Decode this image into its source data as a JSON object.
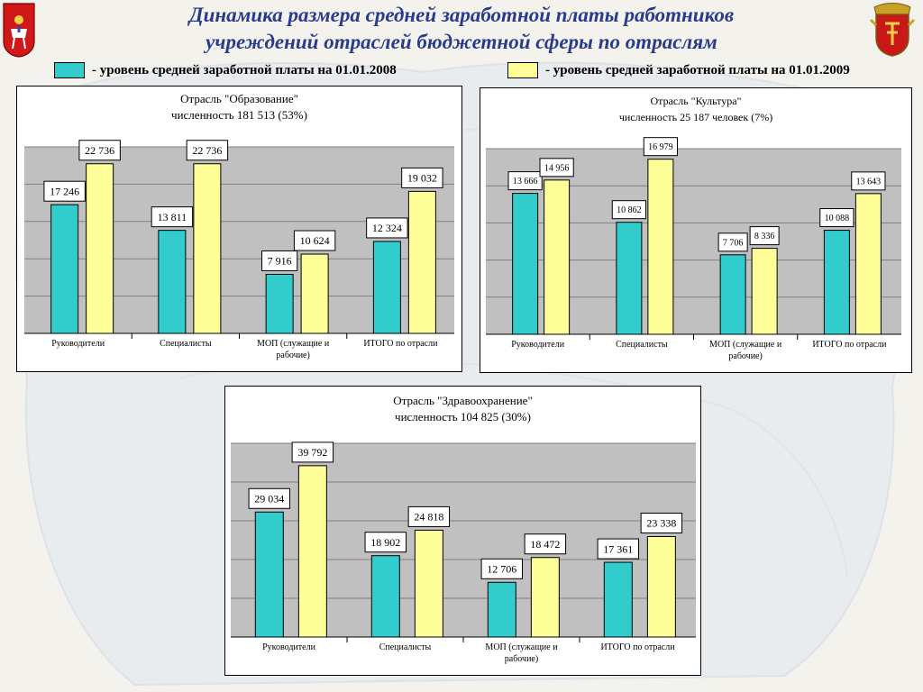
{
  "title": {
    "line1": "Динамика размера средней заработной платы работников",
    "line2": "учреждений отраслей бюджетной сферы по отраслям"
  },
  "legend": [
    {
      "label": "- уровень средней заработной платы на 01.01.2008",
      "color": "#33cccc"
    },
    {
      "label": "- уровень средней заработной платы на 01.01.2009",
      "color": "#ffff99"
    }
  ],
  "colors": {
    "series_2008": "#33cccc",
    "series_2009": "#ffff99",
    "plot_bg": "#c0c0c0",
    "title_color": "#2a3a8c"
  },
  "chart_data": [
    {
      "type": "bar",
      "title": "Отрасль \"Образование\"",
      "subtitle": "численность 181 513 (53%)",
      "categories": [
        [
          "Руководители"
        ],
        [
          "Специалисты"
        ],
        [
          "МОП (служащие и",
          "рабочие)"
        ],
        [
          "ИТОГО по отрасли"
        ]
      ],
      "series": [
        {
          "values": [
            17246,
            13811,
            7916,
            12324
          ],
          "labels": [
            "17 246",
            "13 811",
            "7 916",
            "12 324"
          ]
        },
        {
          "values": [
            22736,
            22736,
            10624,
            19032
          ],
          "labels": [
            "22 736",
            "22 736",
            "10 624",
            "19 032"
          ]
        }
      ],
      "ylim": [
        0,
        25000
      ],
      "grid": true
    },
    {
      "type": "bar",
      "title": "Отрасль \"Культура\"",
      "subtitle": "численность 25 187 человек (7%)",
      "categories": [
        [
          "Руководители"
        ],
        [
          "Специалисты"
        ],
        [
          "МОП (служащие и",
          "рабочие)"
        ],
        [
          "ИТОГО по отрасли"
        ]
      ],
      "series": [
        {
          "values": [
            13666,
            10862,
            7706,
            10088
          ],
          "labels": [
            "13 666",
            "10 862",
            "7 706",
            "10 088"
          ]
        },
        {
          "values": [
            14956,
            16979,
            8336,
            13643
          ],
          "labels": [
            "14 956",
            "16 979",
            "8 336",
            "13 643"
          ]
        }
      ],
      "ylim": [
        0,
        18000
      ],
      "grid": true
    },
    {
      "type": "bar",
      "title": "Отрасль \"Здравоохранение\"",
      "subtitle": "численность 104 825 (30%)",
      "categories": [
        [
          "Руководители"
        ],
        [
          "Специалисты"
        ],
        [
          "МОП (служащие и",
          "рабочие)"
        ],
        [
          "ИТОГО по отрасли"
        ]
      ],
      "series": [
        {
          "values": [
            29034,
            18902,
            12706,
            17361
          ],
          "labels": [
            "29 034",
            "18 902",
            "12 706",
            "17 361"
          ]
        },
        {
          "values": [
            39792,
            24818,
            18472,
            23338
          ],
          "labels": [
            "39 792",
            "24 818",
            "18 472",
            "23 338"
          ]
        }
      ],
      "ylim": [
        0,
        45000
      ],
      "grid": true
    }
  ]
}
